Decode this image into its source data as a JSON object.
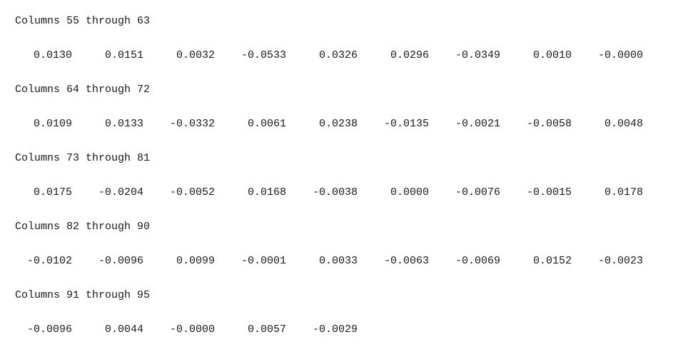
{
  "blocks": [
    {
      "header": "Columns 55 through 63",
      "values": [
        "0.0130",
        "0.0151",
        "0.0032",
        "-0.0533",
        "0.0326",
        "0.0296",
        "-0.0349",
        "0.0010",
        "-0.0000"
      ]
    },
    {
      "header": "Columns 64 through 72",
      "values": [
        "0.0109",
        "0.0133",
        "-0.0332",
        "0.0061",
        "0.0238",
        "-0.0135",
        "-0.0021",
        "-0.0058",
        "0.0048"
      ]
    },
    {
      "header": "Columns 73 through 81",
      "values": [
        "0.0175",
        "-0.0204",
        "-0.0052",
        "0.0168",
        "-0.0038",
        "0.0000",
        "-0.0076",
        "-0.0015",
        "0.0178"
      ]
    },
    {
      "header": "Columns 82 through 90",
      "values": [
        "-0.0102",
        "-0.0096",
        "0.0099",
        "-0.0001",
        "0.0033",
        "-0.0063",
        "-0.0069",
        "0.0152",
        "-0.0023"
      ]
    },
    {
      "header": "Columns 91 through 95",
      "values": [
        "-0.0096",
        "0.0044",
        "-0.0000",
        "0.0057",
        "-0.0029"
      ]
    }
  ]
}
